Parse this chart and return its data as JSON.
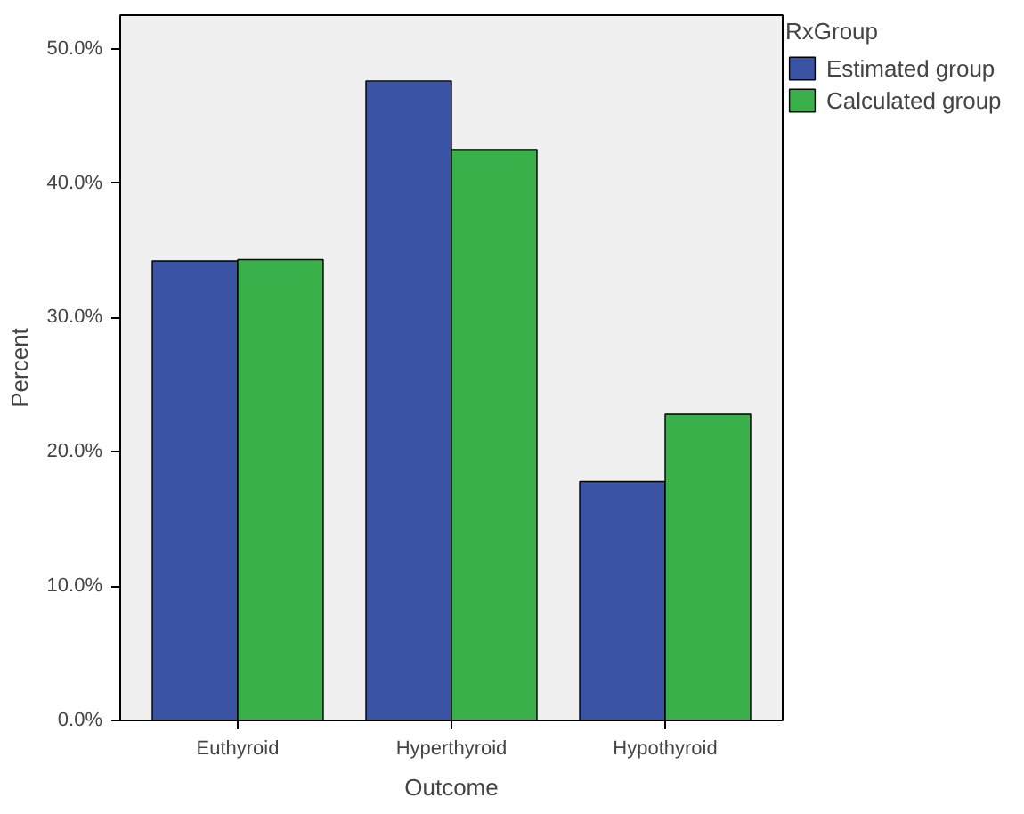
{
  "chart_data": {
    "type": "bar",
    "xlabel": "Outcome",
    "ylabel": "Percent",
    "legend_title": "RxGroup",
    "categories": [
      "Euthyroid",
      "Hyperthyroid",
      "Hypothyroid"
    ],
    "series": [
      {
        "name": "Estimated group",
        "color": "#3a53a4",
        "values": [
          34.2,
          47.6,
          17.8
        ]
      },
      {
        "name": "Calculated group",
        "color": "#3ab04b",
        "values": [
          34.3,
          42.5,
          22.8
        ]
      }
    ],
    "ylim": [
      0,
      52.5
    ],
    "yticks": [
      {
        "value": 0,
        "label": "0.0%"
      },
      {
        "value": 10,
        "label": "10.0%"
      },
      {
        "value": 20,
        "label": "20.0%"
      },
      {
        "value": 30,
        "label": "30.0%"
      },
      {
        "value": 40,
        "label": "40.0%"
      },
      {
        "value": 50,
        "label": "50.0%"
      }
    ],
    "legend": "top right"
  }
}
